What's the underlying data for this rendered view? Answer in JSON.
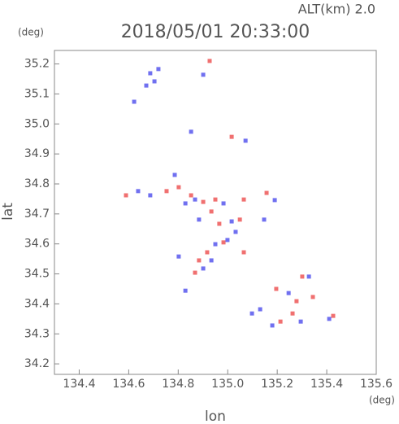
{
  "chart_data": {
    "type": "scatter",
    "title": "2018/05/01 20:33:00",
    "subtitle": "ALT(km) 2.0",
    "y_unit": "(deg)",
    "x_unit": "(deg)",
    "x_label": "lon",
    "y_label": "lat",
    "xlim": [
      134.3,
      135.6
    ],
    "ylim": [
      34.165,
      35.245
    ],
    "xticks": [
      134.4,
      134.6,
      134.8,
      {
        "value": 135.0,
        "label": "135.0"
      },
      135.2,
      135.4,
      135.6
    ],
    "yticks": [
      34.2,
      34.3,
      34.4,
      34.5,
      34.6,
      34.7,
      34.8,
      34.9,
      {
        "value": 35.0,
        "label": "35.0"
      },
      35.1,
      35.2
    ],
    "grid": false,
    "series": [
      {
        "color": "#f07070",
        "x": [
          134.927,
          135.016,
          134.802,
          134.852,
          134.901,
          134.95,
          134.934,
          134.966,
          135.049,
          134.983,
          134.917,
          134.884,
          134.868,
          134.589,
          134.753,
          135.065,
          135.157,
          135.065,
          135.196,
          135.278,
          135.301,
          135.262,
          135.213,
          135.426,
          135.344
        ],
        "y": [
          35.21,
          34.957,
          34.789,
          34.762,
          34.74,
          34.748,
          34.708,
          34.667,
          34.681,
          34.605,
          34.572,
          34.545,
          34.504,
          34.762,
          34.776,
          34.748,
          34.77,
          34.572,
          34.45,
          34.409,
          34.491,
          34.368,
          34.341,
          34.36,
          34.423
        ]
      },
      {
        "color": "#7070f0",
        "x": [
          134.687,
          134.704,
          134.671,
          134.72,
          134.622,
          134.901,
          134.852,
          135.072,
          134.786,
          134.868,
          134.829,
          134.983,
          134.884,
          135.016,
          135.032,
          134.95,
          134.999,
          134.901,
          134.934,
          134.687,
          134.638,
          135.19,
          135.147,
          134.802,
          134.829,
          135.246,
          135.328,
          135.18,
          135.131,
          135.098,
          135.295,
          135.41
        ],
        "y": [
          35.169,
          35.142,
          35.128,
          35.183,
          35.074,
          35.164,
          34.974,
          34.944,
          34.83,
          34.748,
          34.735,
          34.735,
          34.681,
          34.675,
          34.64,
          34.599,
          34.613,
          34.518,
          34.545,
          34.762,
          34.776,
          34.746,
          34.681,
          34.558,
          34.444,
          34.436,
          34.491,
          34.328,
          34.382,
          34.368,
          34.341,
          34.35
        ]
      }
    ]
  }
}
